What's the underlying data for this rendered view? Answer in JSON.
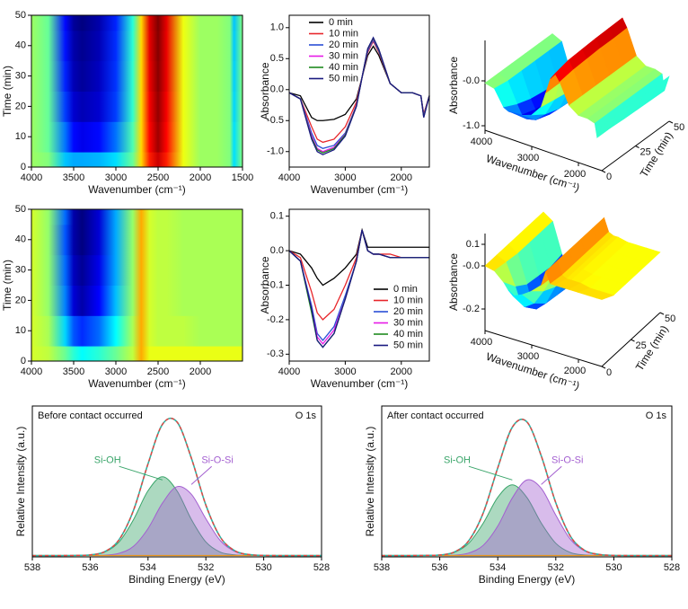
{
  "chart_data": [
    {
      "type": "heatmap",
      "xlabel": "Wavenumber (cm⁻¹)",
      "ylabel": "Time (min)",
      "xlim": [
        4000,
        1500
      ],
      "xticks": [
        4000,
        3500,
        3000,
        2500,
        2000,
        1500
      ],
      "ylim": [
        0,
        50
      ],
      "yticks": [
        0,
        10,
        20,
        30,
        40,
        50
      ],
      "zlim": [
        -1.05,
        0.84
      ],
      "colormap": "jet"
    },
    {
      "type": "line",
      "xlabel": "Wavenumber (cm⁻¹)",
      "ylabel": "Absorbance",
      "xlim": [
        4000,
        1500
      ],
      "xticks": [
        4000,
        3000,
        2000
      ],
      "ylim": [
        -1.25,
        1.2
      ],
      "yticks": [
        {
          "value": 1,
          "label": "1.0"
        },
        0.5,
        {
          "value": 0,
          "label": "0.0"
        },
        -0.5,
        {
          "value": -1,
          "label": "-1.0"
        }
      ],
      "legend": "upper left",
      "x": [
        4000,
        3800,
        3600,
        3500,
        3400,
        3200,
        3000,
        2800,
        2700,
        2600,
        2500,
        2400,
        2200,
        2000,
        1800,
        1650,
        1600,
        1500
      ],
      "series": [
        {
          "name": "0 min",
          "color": "#000000",
          "values": [
            -0.05,
            -0.1,
            -0.45,
            -0.5,
            -0.5,
            -0.48,
            -0.4,
            -0.15,
            0.2,
            0.55,
            0.7,
            0.55,
            0.1,
            -0.05,
            -0.05,
            -0.1,
            -0.4,
            -0.1
          ]
        },
        {
          "name": "10 min",
          "color": "#e8262b",
          "values": [
            -0.05,
            -0.15,
            -0.6,
            -0.8,
            -0.85,
            -0.8,
            -0.6,
            -0.2,
            0.2,
            0.6,
            0.78,
            0.6,
            0.1,
            -0.05,
            -0.05,
            -0.1,
            -0.4,
            -0.1
          ]
        },
        {
          "name": "20 min",
          "color": "#2a4fd6",
          "values": [
            -0.05,
            -0.15,
            -0.7,
            -0.9,
            -0.95,
            -0.9,
            -0.7,
            -0.25,
            0.2,
            0.62,
            0.8,
            0.62,
            0.1,
            -0.05,
            -0.05,
            -0.1,
            -0.42,
            -0.1
          ]
        },
        {
          "name": "30 min",
          "color": "#e619e6",
          "values": [
            -0.05,
            -0.15,
            -0.75,
            -0.95,
            -1.0,
            -0.93,
            -0.72,
            -0.25,
            0.2,
            0.64,
            0.82,
            0.64,
            0.1,
            -0.05,
            -0.05,
            -0.1,
            -0.43,
            -0.1
          ]
        },
        {
          "name": "40 min",
          "color": "#1f8a1f",
          "values": [
            -0.05,
            -0.15,
            -0.78,
            -0.97,
            -1.02,
            -0.95,
            -0.73,
            -0.26,
            0.2,
            0.65,
            0.83,
            0.64,
            0.1,
            -0.05,
            -0.05,
            -0.1,
            -0.44,
            -0.1
          ]
        },
        {
          "name": "50 min",
          "color": "#1a1a80",
          "values": [
            -0.05,
            -0.15,
            -0.8,
            -1.0,
            -1.05,
            -0.97,
            -0.75,
            -0.27,
            0.2,
            0.66,
            0.84,
            0.65,
            0.1,
            -0.05,
            -0.05,
            -0.1,
            -0.45,
            -0.1
          ]
        }
      ]
    },
    {
      "type": "surface3d",
      "zlabel": "Absorbance",
      "xlabel": "Wavenumber (cm⁻¹)",
      "ylabel": "Time (min)",
      "zlim": [
        -1.1,
        0.9
      ],
      "zticks": [
        {
          "value": 0,
          "label": "-0.0"
        },
        {
          "value": -1,
          "label": "-1.0"
        }
      ],
      "xticks": [
        4000,
        3000,
        2000
      ],
      "ylim": [
        0,
        50
      ],
      "yticks": [
        0,
        25,
        50
      ]
    },
    {
      "type": "heatmap",
      "xlabel": "Wavenumber (cm⁻¹)",
      "ylabel": "Time (min)",
      "xlim": [
        4000,
        1500
      ],
      "xticks": [
        4000,
        3500,
        3000,
        2500,
        2000
      ],
      "ylim": [
        0,
        50
      ],
      "yticks": [
        0,
        10,
        20,
        30,
        40,
        50
      ],
      "zlim": [
        -0.28,
        0.2
      ],
      "colormap": "jet"
    },
    {
      "type": "line",
      "xlabel": "Wavenumber (cm⁻¹)",
      "ylabel": "Absorbance",
      "xlim": [
        4000,
        1500
      ],
      "xticks": [
        4000,
        3000,
        2000
      ],
      "ylim": [
        -0.32,
        0.12
      ],
      "yticks": [
        0.1,
        {
          "value": 0,
          "label": "0.0"
        },
        -0.1,
        -0.2,
        -0.3
      ],
      "legend": "lower right",
      "x": [
        4000,
        3800,
        3600,
        3500,
        3400,
        3200,
        3000,
        2800,
        2700,
        2600,
        2500,
        2400,
        2200,
        2000,
        1800,
        1650,
        1600,
        1500
      ],
      "series": [
        {
          "name": "0 min",
          "color": "#000000",
          "values": [
            0,
            -0.01,
            -0.05,
            -0.08,
            -0.1,
            -0.08,
            -0.05,
            -0.01,
            0.06,
            0.01,
            0.01,
            0.01,
            0.01,
            0.01,
            0.01,
            0.01,
            0.01,
            0.01
          ]
        },
        {
          "name": "10 min",
          "color": "#e8262b",
          "values": [
            0,
            -0.02,
            -0.12,
            -0.18,
            -0.2,
            -0.17,
            -0.1,
            -0.02,
            0.06,
            0,
            -0.01,
            -0.01,
            -0.01,
            -0.02,
            -0.02,
            -0.02,
            -0.02,
            -0.02
          ]
        },
        {
          "name": "20 min",
          "color": "#2a4fd6",
          "values": [
            0,
            -0.03,
            -0.16,
            -0.24,
            -0.26,
            -0.22,
            -0.13,
            -0.03,
            0.06,
            0,
            -0.01,
            -0.01,
            -0.02,
            -0.02,
            -0.02,
            -0.02,
            -0.02,
            -0.02
          ]
        },
        {
          "name": "30 min",
          "color": "#e619e6",
          "values": [
            0,
            -0.03,
            -0.17,
            -0.25,
            -0.27,
            -0.23,
            -0.14,
            -0.03,
            0.06,
            0,
            -0.01,
            -0.01,
            -0.02,
            -0.02,
            -0.02,
            -0.02,
            -0.02,
            -0.02
          ]
        },
        {
          "name": "40 min",
          "color": "#1f8a1f",
          "values": [
            0,
            -0.03,
            -0.18,
            -0.26,
            -0.28,
            -0.24,
            -0.14,
            -0.03,
            0.06,
            0,
            -0.01,
            -0.01,
            -0.02,
            -0.02,
            -0.02,
            -0.02,
            -0.02,
            -0.02
          ]
        },
        {
          "name": "50 min",
          "color": "#1a1a80",
          "values": [
            0,
            -0.03,
            -0.17,
            -0.26,
            -0.28,
            -0.24,
            -0.14,
            -0.03,
            0.06,
            0,
            -0.01,
            -0.01,
            -0.02,
            -0.02,
            -0.02,
            -0.02,
            -0.02,
            -0.02
          ]
        }
      ]
    },
    {
      "type": "surface3d",
      "zlabel": "Absorbance",
      "xlabel": "Wavenumber (cm⁻¹)",
      "ylabel": "Time (min)",
      "zlim": [
        -0.3,
        0.15
      ],
      "zticks": [
        0.1,
        {
          "value": 0,
          "label": "-0.0"
        },
        -0.2
      ],
      "xticks": [
        4000,
        3000,
        2000
      ],
      "ylim": [
        0,
        50
      ],
      "yticks": [
        0,
        25,
        50
      ]
    },
    {
      "type": "peak_fit",
      "title": "Before contact occurred",
      "annotation": "O 1s",
      "xlabel": "Binding Energy (eV)",
      "ylabel": "Relative Intensity (a.u.)",
      "xlim": [
        538,
        528
      ],
      "xticks": [
        538,
        536,
        534,
        532,
        530,
        528
      ],
      "ylim": [
        -1,
        112
      ],
      "dash_color": "#e8433f",
      "x": [
        538,
        537.5,
        537,
        536.5,
        536,
        535.5,
        535,
        534.5,
        534,
        533.5,
        533,
        532.5,
        532,
        531.5,
        531,
        530.5,
        530,
        529.5,
        529,
        528.5,
        528
      ],
      "series": [
        {
          "color": "#2fb3a3",
          "values": [
            0,
            0,
            0,
            0.1,
            0.5,
            2.9,
            11.9,
            34,
            68.7,
            98.3,
            100.1,
            72.9,
            37.8,
            13.8,
            3.6,
            0.7,
            0.1,
            0,
            0,
            0,
            0
          ]
        },
        {
          "name": "Si-OH",
          "color": "#3aa56a",
          "values": [
            0,
            0,
            0,
            0.1,
            0.5,
            2.6,
            10.2,
            27,
            48.5,
            59,
            48.5,
            27,
            10.2,
            2.6,
            0.5,
            0.1,
            0,
            0,
            0,
            0,
            0
          ]
        },
        {
          "name": "Si-O-Si",
          "color": "#a35fd0",
          "values": [
            0,
            0,
            0,
            0,
            0,
            0.3,
            1.7,
            7.0,
            20.2,
            39.3,
            51.6,
            45.9,
            27.6,
            11.2,
            3.1,
            0.6,
            0.1,
            0,
            0,
            0,
            0
          ]
        }
      ]
    },
    {
      "type": "peak_fit",
      "title": "After contact occurred",
      "annotation": "O 1s",
      "xlabel": "Binding Energy (eV)",
      "ylabel": "Relative Intensity (a.u.)",
      "xlim": [
        538,
        528
      ],
      "xticks": [
        538,
        536,
        534,
        532,
        530,
        528
      ],
      "ylim": [
        -1,
        112
      ],
      "dash_color": "#e8433f",
      "x": [
        538,
        537.5,
        537,
        536.5,
        536,
        535.5,
        535,
        534.5,
        534,
        533.5,
        533,
        532.5,
        532,
        531.5,
        531,
        530.5,
        530,
        529.5,
        529,
        528.5,
        528
      ],
      "series": [
        {
          "color": "#2fb3a3",
          "values": [
            0,
            0,
            0,
            0.1,
            0.4,
            2.6,
            11.1,
            32,
            65.7,
            96.1,
            100.2,
            74.6,
            39.5,
            14.6,
            3.8,
            0.8,
            0.1,
            0,
            0,
            0,
            0
          ]
        },
        {
          "name": "Si-OH",
          "color": "#3aa56a",
          "values": [
            0,
            0,
            0,
            0.1,
            0.4,
            2.3,
            9.2,
            24.3,
            43.6,
            53,
            43.6,
            24.3,
            9.2,
            2.3,
            0.4,
            0.1,
            0,
            0,
            0,
            0,
            0
          ]
        },
        {
          "name": "Si-O-Si",
          "color": "#a35fd0",
          "values": [
            0,
            0,
            0,
            0,
            0,
            0.3,
            1.9,
            7.7,
            22.1,
            43.1,
            56.6,
            50.3,
            30.3,
            12.3,
            3.4,
            0.7,
            0.1,
            0,
            0,
            0,
            0
          ]
        }
      ]
    }
  ]
}
